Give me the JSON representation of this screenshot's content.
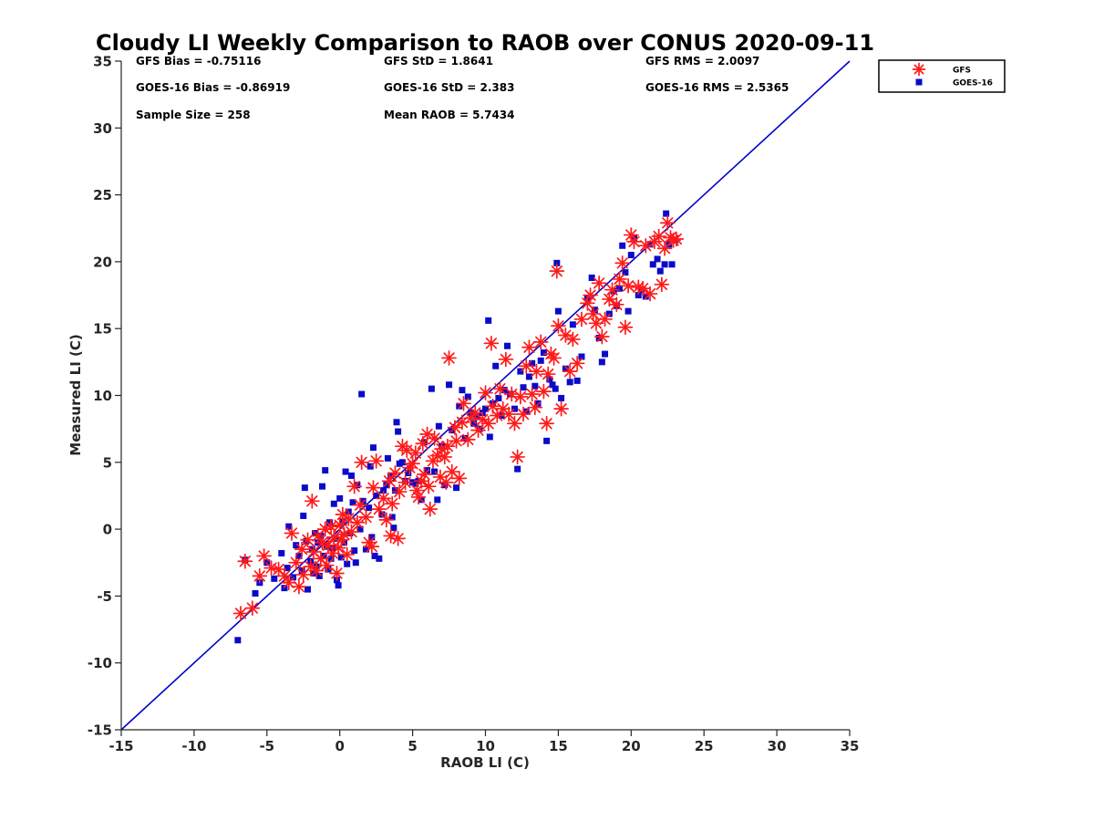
{
  "chart_data": {
    "type": "scatter",
    "title": "Cloudy LI Weekly Comparison to RAOB over CONUS 2020-09-11",
    "xlabel": "RAOB LI (C)",
    "ylabel": "Measured LI (C)",
    "xlim": [
      -15,
      35
    ],
    "ylim": [
      -15,
      35
    ],
    "xticks": [
      "-15",
      "-10",
      "-5",
      "0",
      "5",
      "10",
      "15",
      "20",
      "25",
      "30",
      "35"
    ],
    "yticks": [
      "-15",
      "-10",
      "-5",
      "0",
      "5",
      "10",
      "15",
      "20",
      "25",
      "30",
      "35"
    ],
    "grid": false,
    "legend_position": "top-right outside",
    "reference_line": {
      "type": "one-to-one",
      "color": "#0000cc"
    },
    "stats": {
      "row1": [
        "GFS Bias = -0.75116",
        "GFS StD = 1.8641",
        "GFS RMS = 2.0097"
      ],
      "row2": [
        "GOES-16 Bias = -0.86919",
        "GOES-16 StD = 2.383",
        "GOES-16 RMS = 2.5365"
      ],
      "row3": [
        "Sample Size = 258",
        "Mean RAOB = 5.7434"
      ]
    },
    "series": [
      {
        "name": "GFS",
        "marker": "asterisk",
        "color": "#ff1a1a",
        "points": [
          [
            -6.8,
            -6.3
          ],
          [
            -6.5,
            -2.4
          ],
          [
            -6.0,
            -5.9
          ],
          [
            -5.5,
            -3.5
          ],
          [
            -5.2,
            -2.0
          ],
          [
            -4.7,
            -2.9
          ],
          [
            -4.2,
            -3.0
          ],
          [
            -3.8,
            -3.5
          ],
          [
            -3.5,
            -4.0
          ],
          [
            -3.3,
            -0.3
          ],
          [
            -3.0,
            -2.5
          ],
          [
            -2.8,
            -4.3
          ],
          [
            -2.6,
            -1.5
          ],
          [
            -2.5,
            -3.4
          ],
          [
            -2.2,
            -0.8
          ],
          [
            -2.0,
            -2.8
          ],
          [
            -1.9,
            2.1
          ],
          [
            -1.8,
            -1.7
          ],
          [
            -1.6,
            -3.1
          ],
          [
            -1.5,
            -0.5
          ],
          [
            -1.3,
            -2.2
          ],
          [
            -1.2,
            -1.0
          ],
          [
            -1.0,
            0.0
          ],
          [
            -0.9,
            -2.7
          ],
          [
            -0.8,
            -1.2
          ],
          [
            -0.6,
            0.2
          ],
          [
            -0.5,
            -1.8
          ],
          [
            -0.4,
            -0.6
          ],
          [
            -0.2,
            -3.3
          ],
          [
            -0.1,
            -1.4
          ],
          [
            0.0,
            0.3
          ],
          [
            0.1,
            -0.8
          ],
          [
            0.2,
            1.1
          ],
          [
            0.3,
            -0.4
          ],
          [
            0.5,
            -1.9
          ],
          [
            0.6,
            0.8
          ],
          [
            0.8,
            -0.2
          ],
          [
            1.0,
            3.2
          ],
          [
            1.2,
            0.5
          ],
          [
            1.4,
            1.8
          ],
          [
            1.5,
            5.0
          ],
          [
            1.8,
            0.9
          ],
          [
            2.0,
            -1.0
          ],
          [
            2.2,
            -1.3
          ],
          [
            2.3,
            3.1
          ],
          [
            2.5,
            5.1
          ],
          [
            2.7,
            1.5
          ],
          [
            3.0,
            2.3
          ],
          [
            3.2,
            0.7
          ],
          [
            3.4,
            3.6
          ],
          [
            3.5,
            -0.5
          ],
          [
            3.6,
            1.9
          ],
          [
            3.8,
            4.2
          ],
          [
            4.0,
            -0.7
          ],
          [
            4.1,
            2.8
          ],
          [
            4.3,
            6.2
          ],
          [
            4.5,
            3.5
          ],
          [
            4.6,
            5.9
          ],
          [
            4.8,
            4.6
          ],
          [
            5.0,
            4.9
          ],
          [
            5.2,
            5.7
          ],
          [
            5.3,
            2.9
          ],
          [
            5.4,
            2.4
          ],
          [
            5.6,
            3.6
          ],
          [
            5.7,
            6.4
          ],
          [
            5.8,
            4.1
          ],
          [
            6.0,
            7.1
          ],
          [
            6.1,
            3.2
          ],
          [
            6.2,
            1.5
          ],
          [
            6.4,
            5.1
          ],
          [
            6.5,
            6.8
          ],
          [
            6.7,
            5.5
          ],
          [
            6.9,
            3.9
          ],
          [
            7.0,
            6.0
          ],
          [
            7.2,
            5.4
          ],
          [
            7.3,
            3.5
          ],
          [
            7.4,
            6.2
          ],
          [
            7.5,
            12.8
          ],
          [
            7.7,
            4.3
          ],
          [
            7.9,
            7.6
          ],
          [
            8.0,
            6.6
          ],
          [
            8.2,
            3.8
          ],
          [
            8.4,
            8.0
          ],
          [
            8.5,
            9.4
          ],
          [
            8.8,
            6.7
          ],
          [
            9.0,
            8.3
          ],
          [
            9.3,
            8.7
          ],
          [
            9.5,
            7.4
          ],
          [
            9.8,
            8.2
          ],
          [
            10.0,
            10.2
          ],
          [
            10.2,
            7.9
          ],
          [
            10.4,
            13.9
          ],
          [
            10.5,
            9.2
          ],
          [
            10.8,
            8.5
          ],
          [
            11.0,
            10.5
          ],
          [
            11.2,
            9.0
          ],
          [
            11.4,
            12.7
          ],
          [
            11.6,
            8.6
          ],
          [
            11.8,
            10.1
          ],
          [
            12.0,
            7.9
          ],
          [
            12.2,
            5.4
          ],
          [
            12.4,
            9.9
          ],
          [
            12.6,
            8.6
          ],
          [
            12.8,
            12.2
          ],
          [
            13.0,
            13.6
          ],
          [
            13.2,
            10.1
          ],
          [
            13.4,
            9.1
          ],
          [
            13.5,
            11.8
          ],
          [
            13.8,
            14.0
          ],
          [
            14.0,
            10.3
          ],
          [
            14.2,
            7.9
          ],
          [
            14.3,
            11.6
          ],
          [
            14.5,
            13.1
          ],
          [
            14.7,
            12.8
          ],
          [
            14.9,
            19.3
          ],
          [
            15.0,
            15.2
          ],
          [
            15.2,
            9.0
          ],
          [
            15.5,
            14.5
          ],
          [
            15.8,
            11.8
          ],
          [
            16.0,
            14.2
          ],
          [
            16.3,
            12.4
          ],
          [
            16.6,
            15.7
          ],
          [
            17.0,
            16.9
          ],
          [
            17.2,
            17.5
          ],
          [
            17.4,
            16.1
          ],
          [
            17.6,
            15.4
          ],
          [
            17.8,
            18.4
          ],
          [
            18.0,
            14.4
          ],
          [
            18.2,
            15.7
          ],
          [
            18.5,
            17.2
          ],
          [
            18.7,
            17.9
          ],
          [
            19.0,
            16.8
          ],
          [
            19.2,
            18.7
          ],
          [
            19.4,
            19.9
          ],
          [
            19.6,
            15.1
          ],
          [
            19.8,
            18.2
          ],
          [
            20.0,
            22.0
          ],
          [
            20.2,
            21.5
          ],
          [
            20.5,
            18.1
          ],
          [
            20.8,
            18.0
          ],
          [
            21.0,
            21.2
          ],
          [
            21.3,
            17.6
          ],
          [
            21.6,
            21.5
          ],
          [
            21.9,
            21.9
          ],
          [
            22.1,
            18.3
          ],
          [
            22.3,
            21.0
          ],
          [
            22.5,
            22.9
          ],
          [
            22.7,
            21.8
          ],
          [
            22.9,
            21.6
          ],
          [
            23.1,
            21.7
          ]
        ]
      },
      {
        "name": "GOES-16",
        "marker": "square",
        "color": "#0a0acc",
        "points": [
          [
            -7.0,
            -8.3
          ],
          [
            -6.5,
            -2.3
          ],
          [
            -5.8,
            -4.8
          ],
          [
            -5.5,
            -4.0
          ],
          [
            -5.0,
            -2.5
          ],
          [
            -4.5,
            -3.7
          ],
          [
            -4.0,
            -1.8
          ],
          [
            -3.8,
            -4.4
          ],
          [
            -3.6,
            -2.9
          ],
          [
            -3.5,
            0.2
          ],
          [
            -3.2,
            -3.6
          ],
          [
            -3.0,
            -1.2
          ],
          [
            -2.8,
            -2.0
          ],
          [
            -2.6,
            -3.1
          ],
          [
            -2.5,
            1.0
          ],
          [
            -2.4,
            3.1
          ],
          [
            -2.3,
            -0.9
          ],
          [
            -2.2,
            -4.5
          ],
          [
            -2.0,
            -2.4
          ],
          [
            -1.9,
            -1.5
          ],
          [
            -1.8,
            -3.3
          ],
          [
            -1.7,
            -0.3
          ],
          [
            -1.6,
            -2.8
          ],
          [
            -1.5,
            -1.0
          ],
          [
            -1.4,
            -3.5
          ],
          [
            -1.3,
            -0.5
          ],
          [
            -1.2,
            3.2
          ],
          [
            -1.1,
            -2.0
          ],
          [
            -1.0,
            4.4
          ],
          [
            -0.9,
            -1.3
          ],
          [
            -0.8,
            -3.0
          ],
          [
            -0.7,
            0.5
          ],
          [
            -0.6,
            -2.2
          ],
          [
            -0.5,
            -1.4
          ],
          [
            -0.4,
            1.9
          ],
          [
            -0.3,
            -0.7
          ],
          [
            -0.2,
            -3.8
          ],
          [
            -0.1,
            -4.2
          ],
          [
            0.0,
            2.3
          ],
          [
            0.1,
            -2.1
          ],
          [
            0.2,
            0.6
          ],
          [
            0.3,
            -1.0
          ],
          [
            0.4,
            4.3
          ],
          [
            0.5,
            -2.6
          ],
          [
            0.6,
            1.3
          ],
          [
            0.7,
            -0.3
          ],
          [
            0.8,
            4.0
          ],
          [
            0.9,
            2.0
          ],
          [
            1.0,
            -1.6
          ],
          [
            1.1,
            -2.5
          ],
          [
            1.2,
            3.3
          ],
          [
            1.4,
            0.0
          ],
          [
            1.5,
            10.1
          ],
          [
            1.6,
            2.1
          ],
          [
            1.8,
            -1.5
          ],
          [
            2.0,
            1.6
          ],
          [
            2.1,
            4.7
          ],
          [
            2.2,
            -0.6
          ],
          [
            2.3,
            6.1
          ],
          [
            2.4,
            -2.0
          ],
          [
            2.5,
            2.5
          ],
          [
            2.7,
            -2.2
          ],
          [
            2.9,
            1.1
          ],
          [
            3.0,
            2.9
          ],
          [
            3.2,
            3.3
          ],
          [
            3.3,
            5.3
          ],
          [
            3.5,
            4.0
          ],
          [
            3.6,
            0.9
          ],
          [
            3.7,
            0.1
          ],
          [
            3.8,
            2.9
          ],
          [
            3.9,
            8.0
          ],
          [
            4.0,
            7.3
          ],
          [
            4.1,
            4.9
          ],
          [
            4.3,
            5.0
          ],
          [
            4.5,
            3.6
          ],
          [
            4.7,
            4.2
          ],
          [
            5.0,
            3.5
          ],
          [
            5.2,
            3.4
          ],
          [
            5.4,
            3.6
          ],
          [
            5.6,
            2.2
          ],
          [
            5.8,
            6.5
          ],
          [
            6.0,
            4.4
          ],
          [
            6.3,
            10.5
          ],
          [
            6.5,
            4.3
          ],
          [
            6.7,
            2.2
          ],
          [
            6.8,
            7.7
          ],
          [
            7.0,
            6.2
          ],
          [
            7.2,
            3.3
          ],
          [
            7.5,
            10.8
          ],
          [
            7.7,
            7.4
          ],
          [
            8.0,
            3.1
          ],
          [
            8.2,
            9.2
          ],
          [
            8.4,
            10.4
          ],
          [
            8.6,
            6.8
          ],
          [
            8.8,
            9.9
          ],
          [
            9.0,
            8.7
          ],
          [
            9.2,
            7.9
          ],
          [
            9.4,
            8.4
          ],
          [
            9.6,
            7.5
          ],
          [
            9.8,
            8.7
          ],
          [
            10.0,
            9.0
          ],
          [
            10.2,
            15.6
          ],
          [
            10.3,
            6.9
          ],
          [
            10.5,
            9.4
          ],
          [
            10.7,
            12.2
          ],
          [
            10.9,
            9.8
          ],
          [
            11.1,
            8.5
          ],
          [
            11.3,
            10.4
          ],
          [
            11.5,
            13.7
          ],
          [
            11.7,
            10.1
          ],
          [
            12.0,
            9.0
          ],
          [
            12.2,
            4.5
          ],
          [
            12.4,
            11.8
          ],
          [
            12.6,
            10.6
          ],
          [
            12.8,
            8.8
          ],
          [
            13.0,
            11.4
          ],
          [
            13.2,
            12.4
          ],
          [
            13.4,
            10.7
          ],
          [
            13.6,
            9.4
          ],
          [
            13.8,
            12.6
          ],
          [
            14.0,
            13.2
          ],
          [
            14.2,
            6.6
          ],
          [
            14.4,
            11.2
          ],
          [
            14.6,
            10.8
          ],
          [
            14.8,
            10.5
          ],
          [
            14.9,
            19.9
          ],
          [
            15.0,
            16.3
          ],
          [
            15.2,
            9.8
          ],
          [
            15.5,
            12.0
          ],
          [
            15.8,
            11.0
          ],
          [
            16.0,
            15.3
          ],
          [
            16.3,
            11.1
          ],
          [
            16.6,
            12.9
          ],
          [
            17.0,
            17.3
          ],
          [
            17.3,
            18.8
          ],
          [
            17.5,
            16.4
          ],
          [
            17.8,
            14.3
          ],
          [
            18.0,
            12.5
          ],
          [
            18.2,
            13.1
          ],
          [
            18.5,
            16.1
          ],
          [
            18.8,
            17.8
          ],
          [
            19.0,
            16.7
          ],
          [
            19.2,
            18.0
          ],
          [
            19.4,
            21.2
          ],
          [
            19.6,
            19.2
          ],
          [
            19.8,
            16.3
          ],
          [
            20.0,
            20.5
          ],
          [
            20.2,
            21.8
          ],
          [
            20.5,
            17.5
          ],
          [
            20.7,
            17.9
          ],
          [
            21.0,
            17.4
          ],
          [
            21.3,
            21.3
          ],
          [
            21.5,
            19.8
          ],
          [
            21.8,
            20.2
          ],
          [
            22.0,
            19.3
          ],
          [
            22.3,
            19.8
          ],
          [
            22.4,
            23.6
          ],
          [
            22.6,
            21.3
          ],
          [
            22.8,
            19.8
          ],
          [
            23.0,
            21.6
          ]
        ]
      }
    ]
  }
}
